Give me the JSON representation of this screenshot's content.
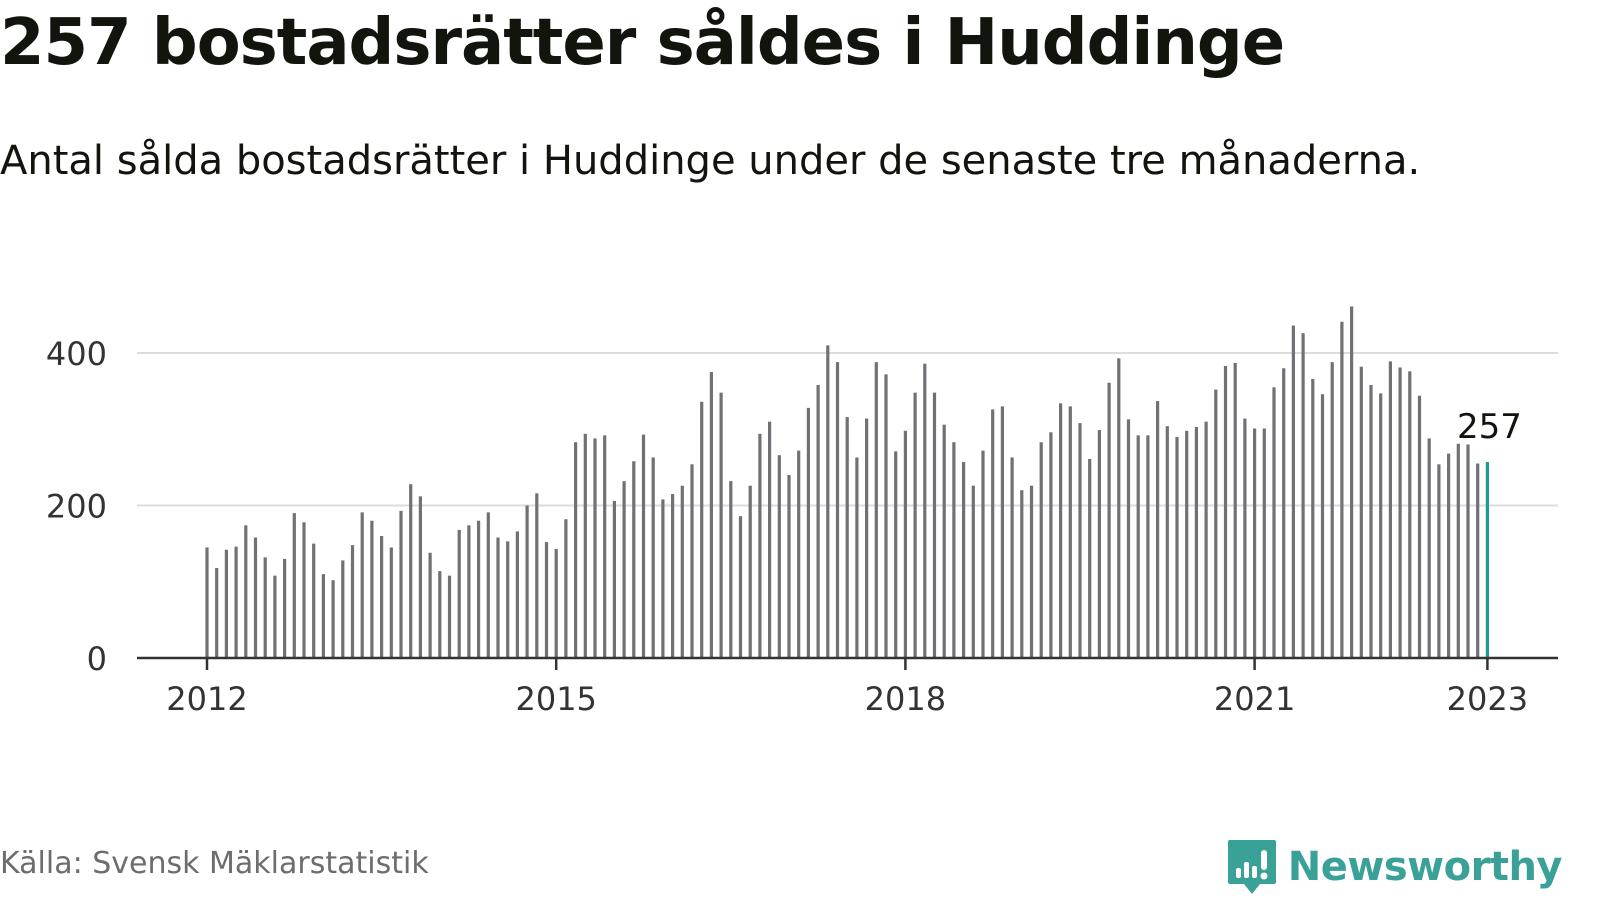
{
  "header": {
    "title": "257 bostadsrätter såldes i Huddinge",
    "subtitle": "Antal sålda bostadsrätter i Huddinge under de senaste tre månaderna."
  },
  "footer": {
    "source": "Källa: Svensk Mäklarstatistik",
    "brand": "Newsworthy"
  },
  "colors": {
    "bar": "#707075",
    "highlight": "#1a9c8f",
    "grid": "#dcdcdc",
    "axis": "#333333",
    "brand": "#3aa198"
  },
  "chart_data": {
    "type": "bar",
    "title": "257 bostadsrätter såldes i Huddinge",
    "subtitle": "Antal sålda bostadsrätter i Huddinge under de senaste tre månaderna.",
    "x_start": "2012-01",
    "x_ticks": [
      "2012",
      "2015",
      "2018",
      "2021",
      "2023"
    ],
    "y_ticks": [
      0,
      200,
      400
    ],
    "ylim": [
      0,
      460
    ],
    "grid": true,
    "highlight_label": "257",
    "values": [
      145,
      118,
      142,
      146,
      174,
      158,
      132,
      108,
      130,
      190,
      178,
      150,
      110,
      102,
      128,
      148,
      191,
      180,
      160,
      145,
      193,
      228,
      212,
      138,
      114,
      108,
      168,
      174,
      180,
      191,
      158,
      153,
      166,
      200,
      216,
      152,
      143,
      182,
      283,
      294,
      288,
      292,
      206,
      232,
      258,
      293,
      263,
      208,
      215,
      226,
      254,
      336,
      375,
      348,
      232,
      186,
      226,
      294,
      310,
      266,
      240,
      272,
      328,
      358,
      410,
      388,
      316,
      263,
      314,
      388,
      372,
      271,
      298,
      348,
      386,
      348,
      306,
      283,
      257,
      226,
      272,
      326,
      330,
      263,
      220,
      226,
      283,
      296,
      334,
      330,
      308,
      261,
      299,
      361,
      393,
      313,
      292,
      292,
      337,
      304,
      290,
      298,
      303,
      310,
      352,
      383,
      387,
      314,
      301,
      301,
      355,
      380,
      436,
      426,
      366,
      346,
      388,
      441,
      461,
      382,
      358,
      347,
      389,
      381,
      376,
      344,
      288,
      254,
      268,
      281,
      280,
      255,
      257
    ]
  }
}
